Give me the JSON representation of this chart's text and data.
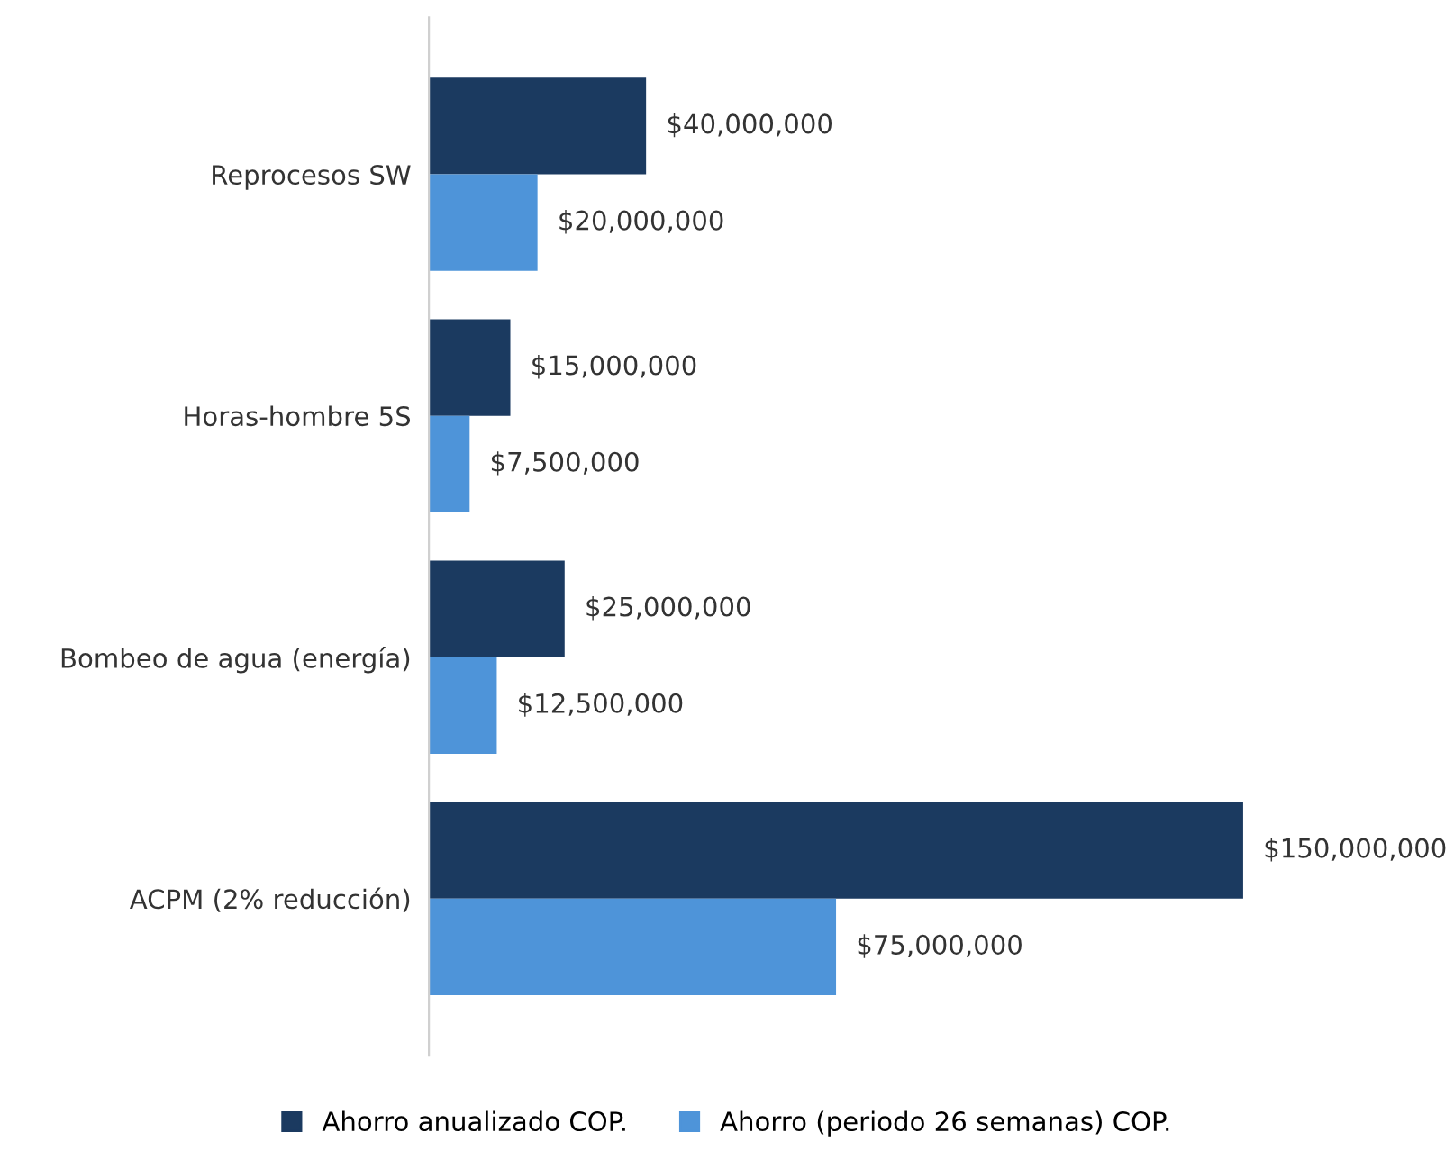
{
  "chart_data": {
    "type": "bar",
    "orientation": "horizontal",
    "categories": [
      "Reprocesos SW",
      "Horas-hombre 5S",
      "Bombeo de agua (energía)",
      "ACPM (2% reducción)"
    ],
    "series": [
      {
        "name": "Ahorro anualizado COP.",
        "color": "#1b3a60",
        "values": [
          40000000,
          15000000,
          25000000,
          150000000
        ],
        "value_labels": [
          "$40,000,000",
          "$15,000,000",
          "$25,000,000",
          "$150,000,000"
        ]
      },
      {
        "name": "Ahorro (periodo 26 semanas) COP.",
        "color": "#4e94d9",
        "values": [
          20000000,
          7500000,
          12500000,
          75000000
        ],
        "value_labels": [
          "$20,000,000",
          "$7,500,000",
          "$12,500,000",
          "$75,000,000"
        ]
      }
    ],
    "legend": "bottom",
    "grid": false,
    "tick_labels": "y"
  }
}
